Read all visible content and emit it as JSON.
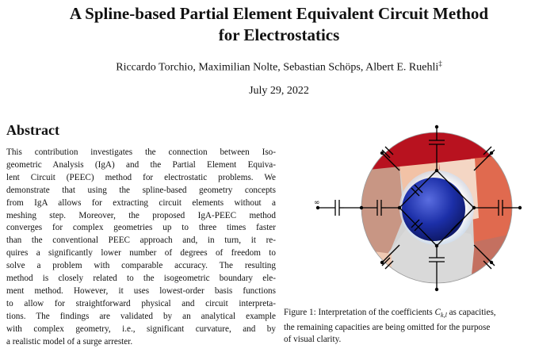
{
  "paper": {
    "title_line1": "A Spline-based Partial Element Equivalent Circuit Method",
    "title_line2": "for Electrostatics",
    "authors": "Riccardo Torchio, Maximilian Nolte, Sebastian Schöps, Albert E. Ruehli",
    "authors_mark": "‡",
    "date": "July 29, 2022"
  },
  "abstract": {
    "heading": "Abstract",
    "lines": [
      "This contribution investigates the connection between Iso-",
      "geometric Analysis (IgA) and the Partial Element Equiva-",
      "lent Circuit (PEEC) method for electrostatic problems. We",
      "demonstrate that using the spline-based geometry concepts",
      "from IgA allows for extracting circuit elements without a",
      "meshing step. Moreover, the proposed IgA-PEEC method",
      "converges for complex geometries up to three times faster",
      "than the conventional PEEC approach and, in turn, it re-",
      "quires a significantly lower number of degrees of freedom to",
      "solve a problem with comparable accuracy. The resulting",
      "method is closely related to the isogeometric boundary ele-",
      "ment method. However, it uses lowest-order basis functions",
      "to allow for straightforward physical and circuit interpreta-",
      "tions. The findings are validated by an analytical example",
      "with complex geometry, i.e., significant curvature, and by",
      "a realistic model of a surge arrester."
    ]
  },
  "figure": {
    "infinity_symbol": "∞",
    "caption_prefix": "Figure 1: Interpretation of the coefficients",
    "caption_math": "C",
    "caption_subscript": "k,l",
    "caption_rest_line1": "as capacities,",
    "caption_line2": "the remaining capacities are being omitted for the purpose",
    "caption_line3": "of visual clarity."
  },
  "colors": {
    "outer_sphere_red": "#b8121f",
    "outer_sphere_salmon": "#e8745a",
    "outer_sphere_light": "#f2c2a6",
    "outer_sphere_grey": "#d3d3d3",
    "inner_sphere_blue": "#1c2fa8",
    "circuit_black": "#000000"
  }
}
